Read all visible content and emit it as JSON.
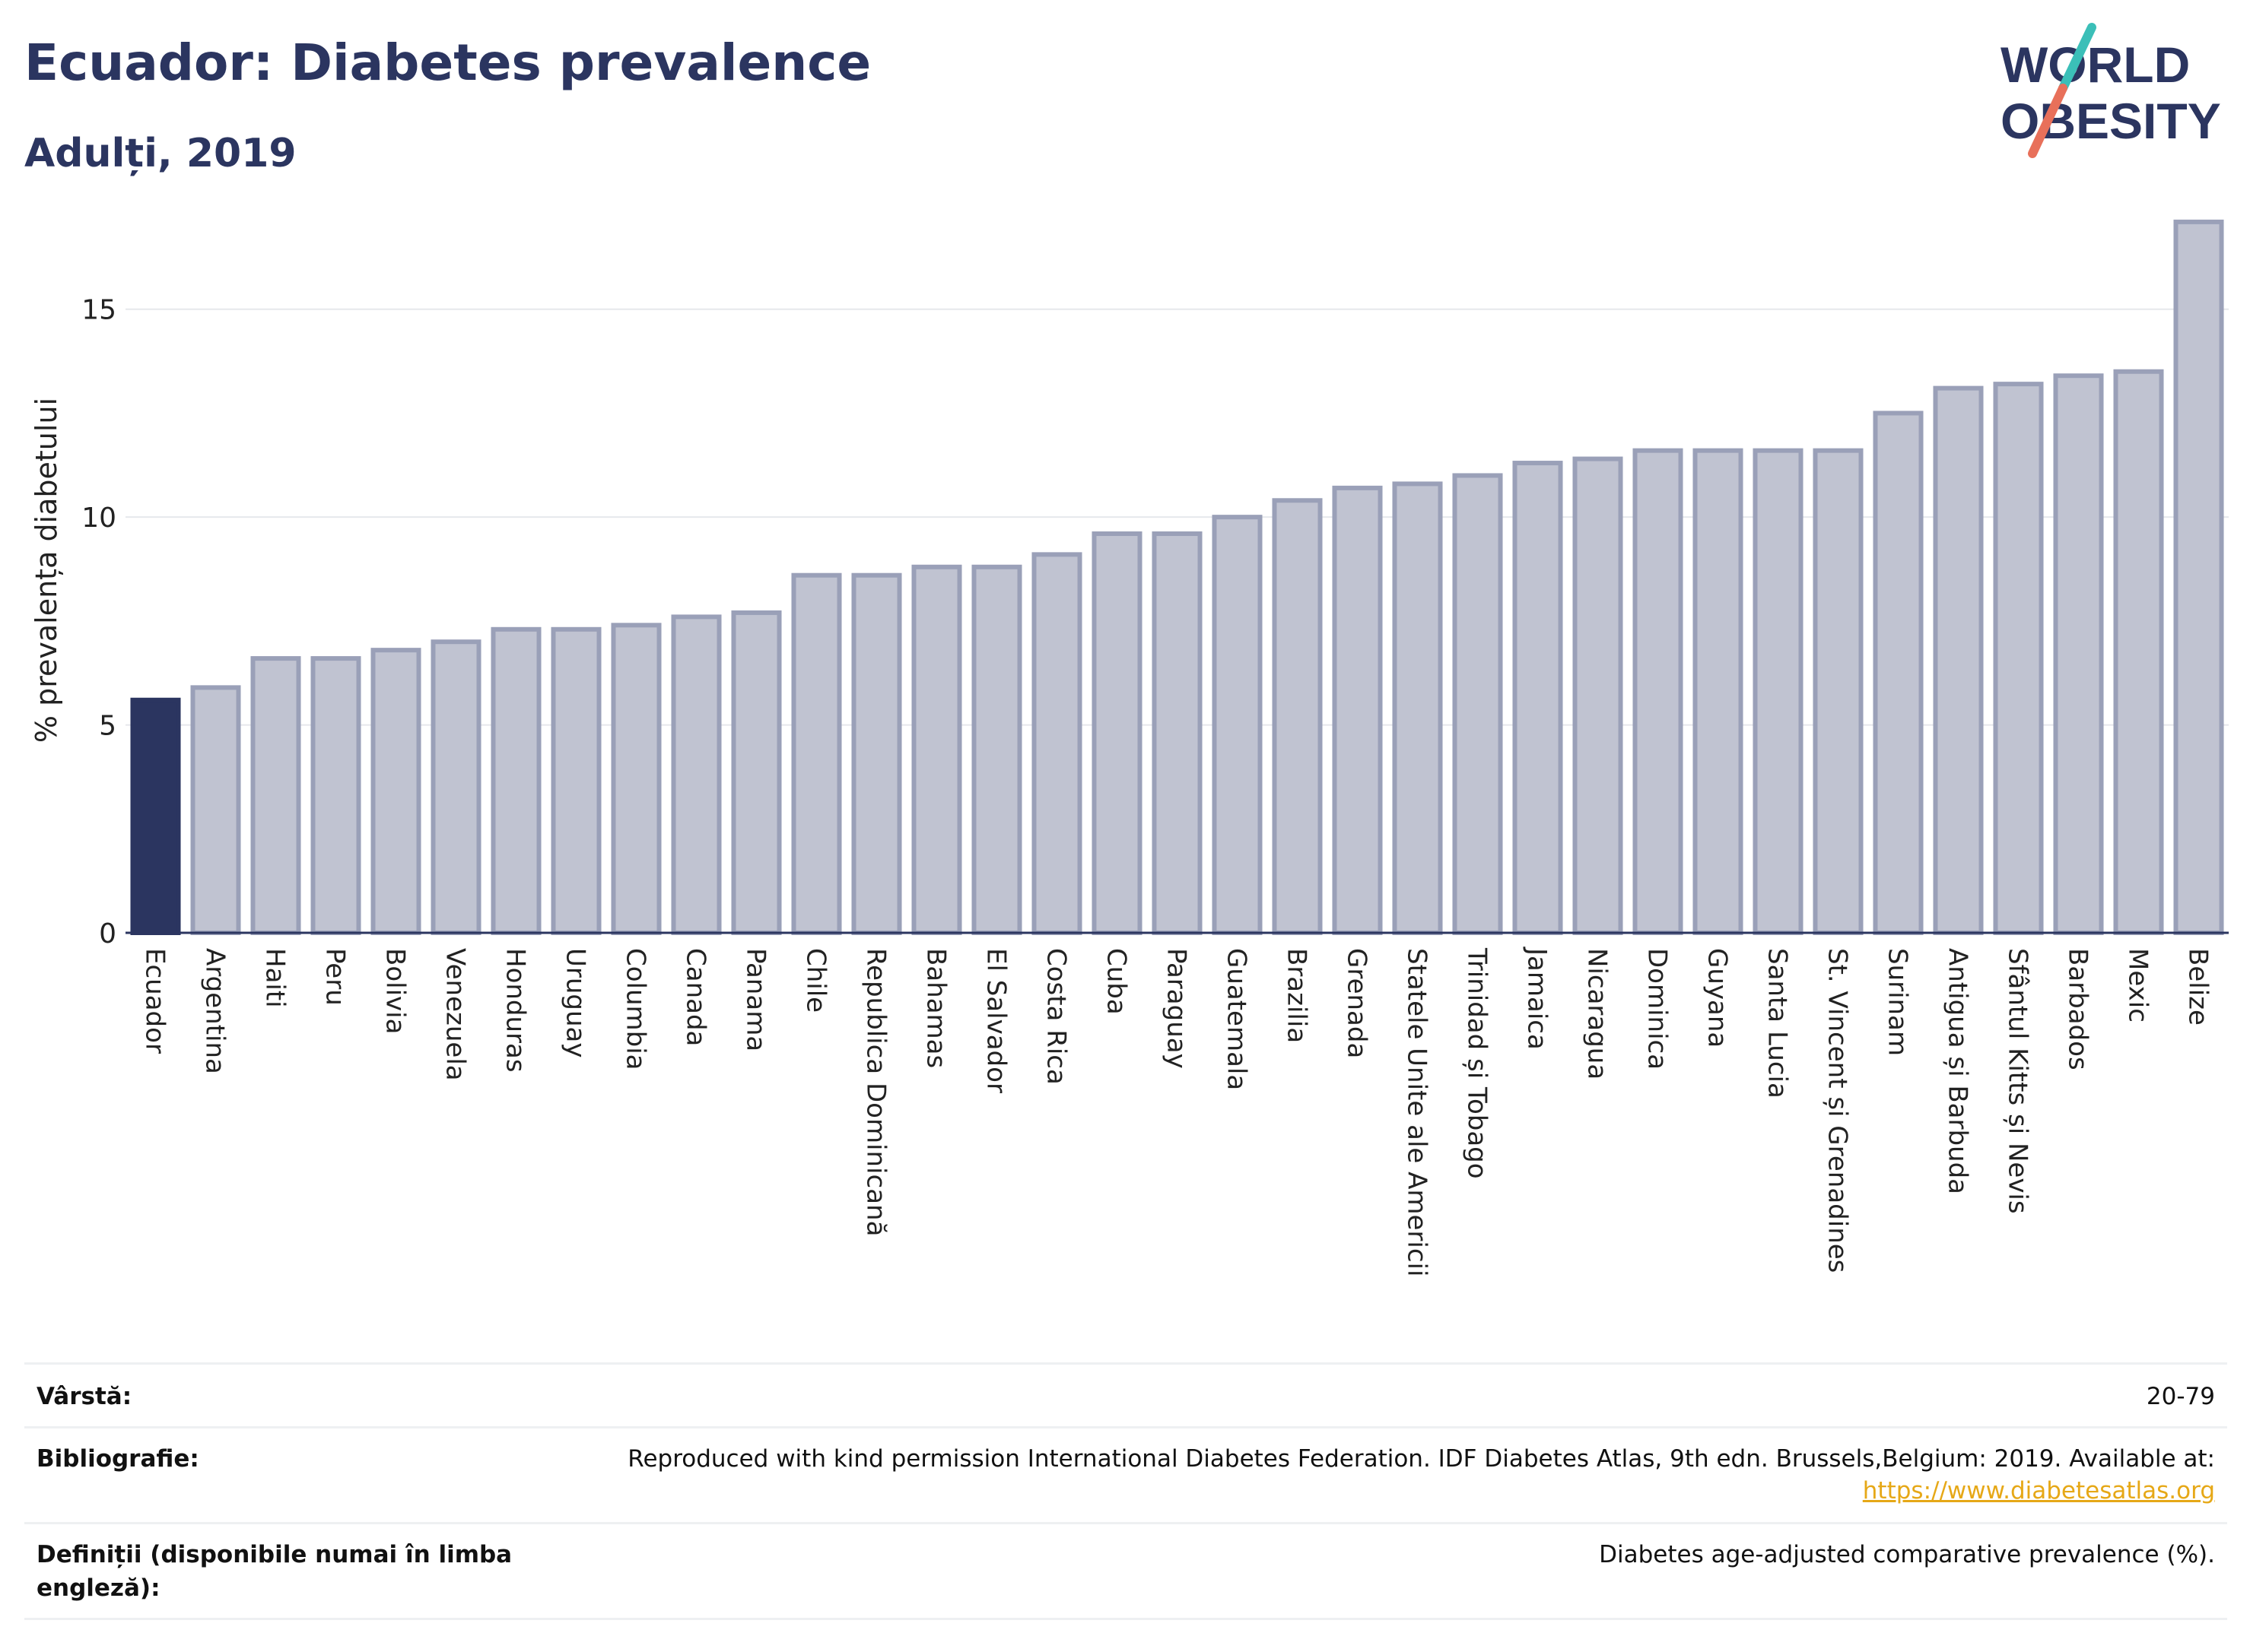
{
  "header": {
    "title": "Ecuador: Diabetes prevalence",
    "subtitle": "Adulți, 2019"
  },
  "logo": {
    "line1": "WORLD",
    "line2": "OBESITY",
    "accent_colors": [
      "#3bbfb8",
      "#e8705a"
    ]
  },
  "chart_data": {
    "type": "bar",
    "ylabel": "% prevalența diabetului",
    "ylim": [
      0,
      17.5
    ],
    "yticks": [
      0,
      5,
      10,
      15
    ],
    "grid": true,
    "highlight_category": "Ecuador",
    "highlight_color": "#2b3560",
    "bar_color": "#c0c3d1",
    "bar_border_color": "#9aa0b8",
    "categories": [
      "Ecuador",
      "Argentina",
      "Haiti",
      "Peru",
      "Bolivia",
      "Venezuela",
      "Honduras",
      "Uruguay",
      "Columbia",
      "Canada",
      "Panama",
      "Chile",
      "Republica Dominicană",
      "Bahamas",
      "El Salvador",
      "Costa Rica",
      "Cuba",
      "Paraguay",
      "Guatemala",
      "Brazilia",
      "Grenada",
      "Statele Unite ale Americii",
      "Trinidad și Tobago",
      "Jamaica",
      "Nicaragua",
      "Dominica",
      "Guyana",
      "Santa Lucia",
      "St. Vincent și Grenadines",
      "Surinam",
      "Antigua și Barbuda",
      "Sfântul Kitts și Nevis",
      "Barbados",
      "Mexic",
      "Belize"
    ],
    "values": [
      5.6,
      5.9,
      6.6,
      6.6,
      6.8,
      7.0,
      7.3,
      7.3,
      7.4,
      7.6,
      7.7,
      8.6,
      8.6,
      8.8,
      8.8,
      9.1,
      9.6,
      9.6,
      10.0,
      10.4,
      10.7,
      10.8,
      11.0,
      11.3,
      11.4,
      11.6,
      11.6,
      11.6,
      11.6,
      12.5,
      13.1,
      13.2,
      13.4,
      13.5,
      17.1
    ]
  },
  "meta": {
    "age_label": "Vârstă:",
    "age_value": "20-79",
    "bib_label": "Bibliografie:",
    "bib_value": "Reproduced with kind permission International Diabetes Federation. IDF Diabetes Atlas, 9th edn. Brussels,Belgium: 2019. Available at:",
    "bib_link": "https://www.diabetesatlas.org",
    "def_label": "Definiții (disponibile numai în limba engleză):",
    "def_value": "Diabetes age-adjusted comparative prevalence (%)."
  }
}
